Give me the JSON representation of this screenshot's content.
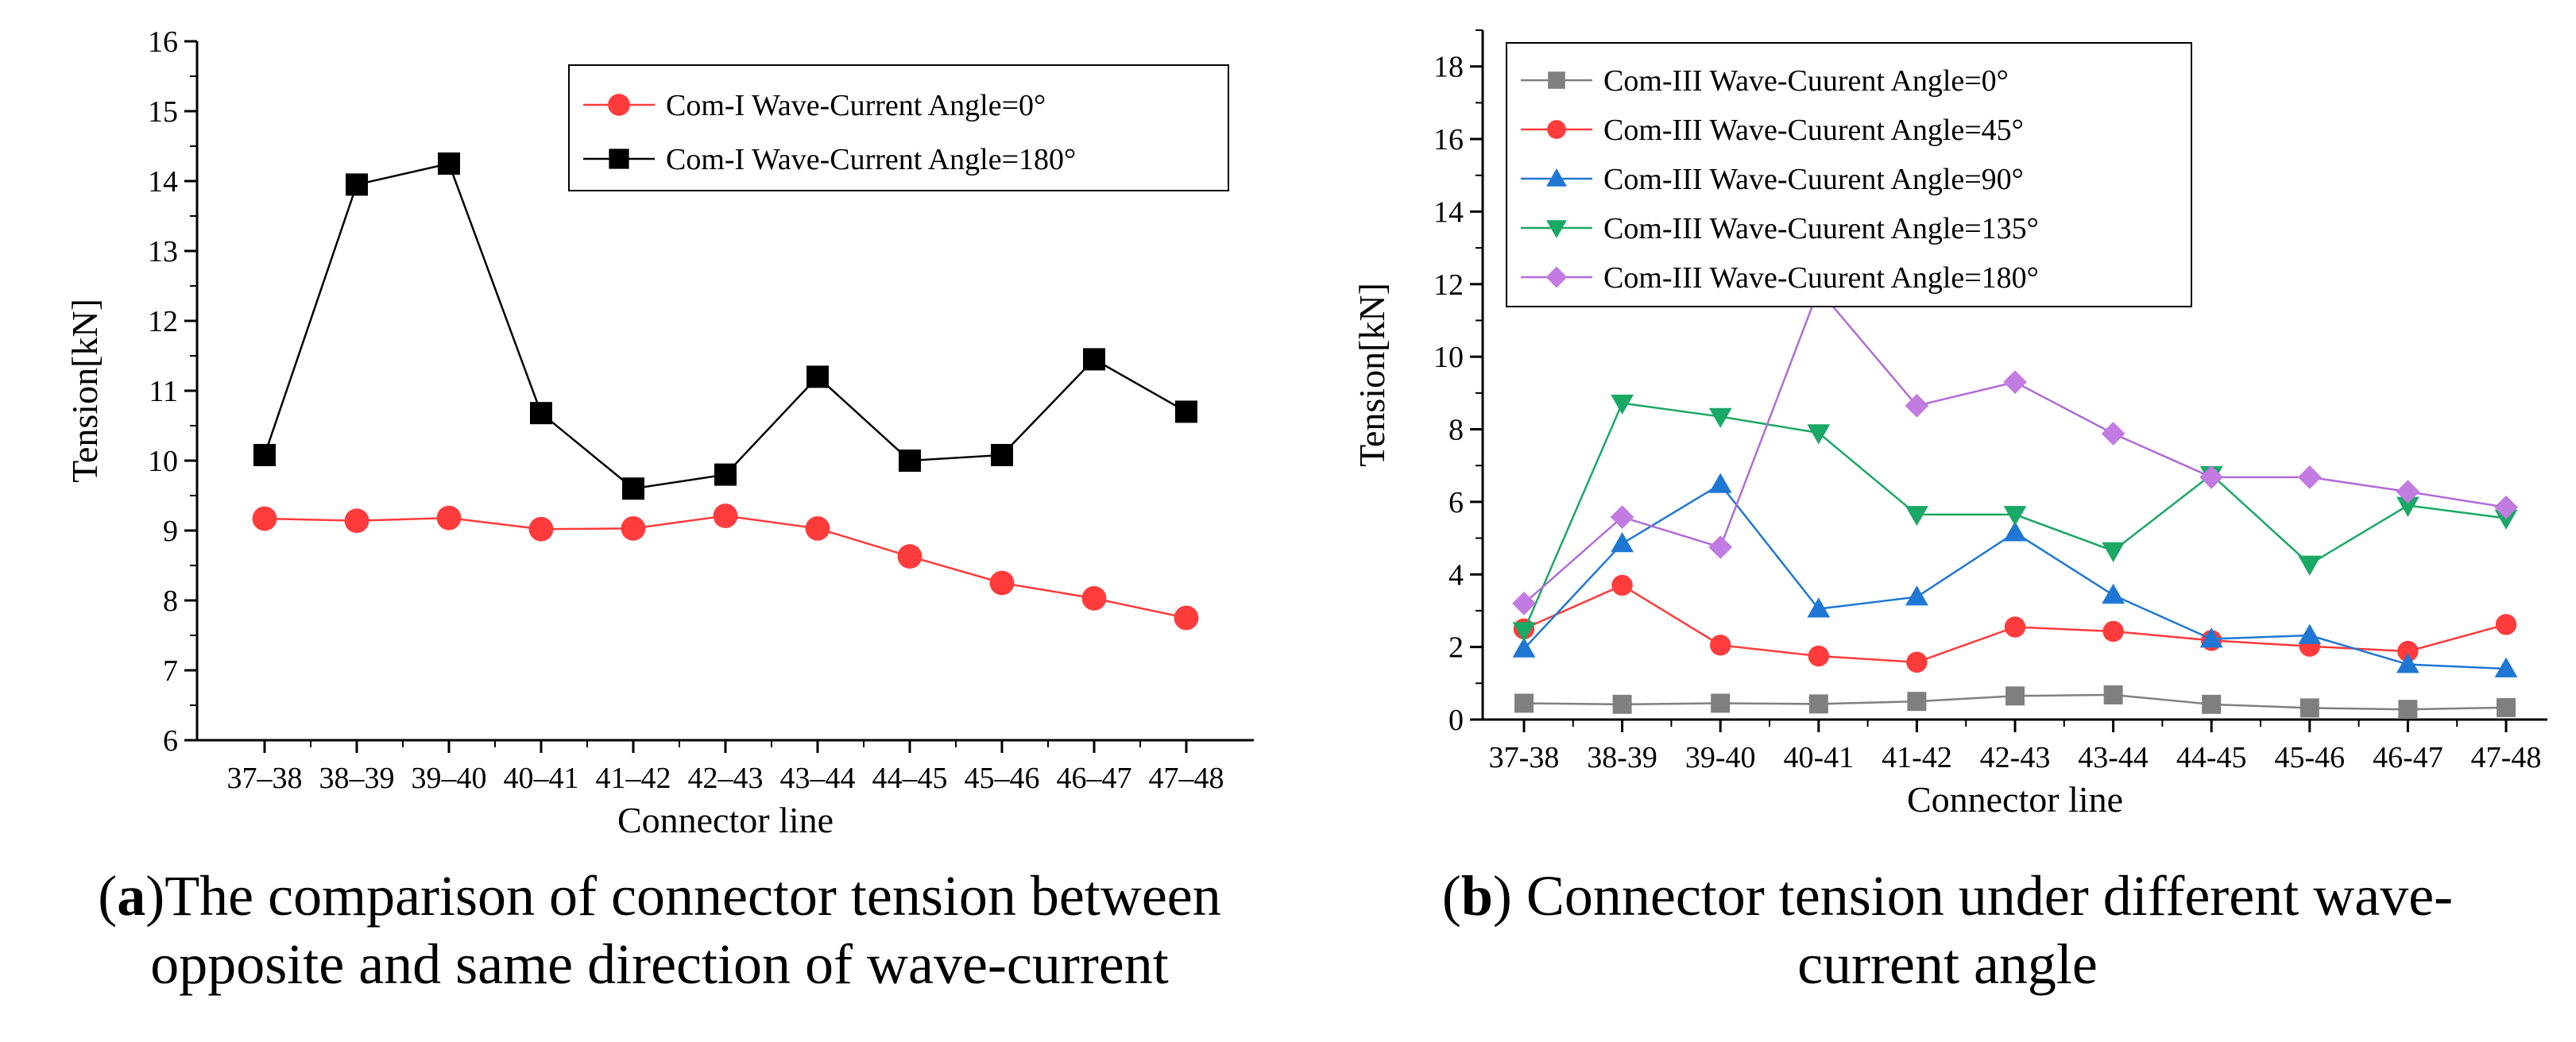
{
  "charts": [
    {
      "type": "line",
      "xlabel": "Connector line",
      "ylabel": "Tension[kN]",
      "ylim": [
        6,
        16
      ],
      "ytick_step": 1,
      "minor_ticks": true,
      "grid": false,
      "legend_position": "top-right",
      "categories": [
        "37–38",
        "38–39",
        "39–40",
        "40–41",
        "41–42",
        "42–43",
        "43–44",
        "44–45",
        "45–46",
        "46–47",
        "47–48"
      ],
      "series": [
        {
          "name": "Com-I Wave-Current Angle=0°",
          "color": "#ff3b3b",
          "line_color": "#ff3b3b",
          "marker": "circle",
          "values": [
            9.17,
            9.14,
            9.18,
            9.02,
            9.03,
            9.21,
            9.03,
            8.63,
            8.25,
            8.03,
            7.75
          ]
        },
        {
          "name": "Com-I Wave-Current Angle=180°",
          "color": "#000000",
          "line_color": "#000000",
          "marker": "square",
          "values": [
            10.08,
            13.95,
            14.25,
            10.68,
            9.6,
            9.8,
            11.2,
            10.0,
            10.08,
            11.45,
            10.7
          ]
        }
      ]
    },
    {
      "type": "line",
      "xlabel": "Connector line",
      "ylabel": "Tension[kN]",
      "ylim": [
        0,
        19
      ],
      "ytick_step": 2,
      "ytick_max": 18,
      "minor_ticks": true,
      "grid": false,
      "legend_position": "top-left",
      "categories": [
        "37-38",
        "38-39",
        "39-40",
        "40-41",
        "41-42",
        "42-43",
        "43-44",
        "44-45",
        "45-46",
        "46-47",
        "47-48"
      ],
      "series": [
        {
          "name": "Com-III Wave-Cuurent Angle=0°",
          "color": "#7f7f7f",
          "line_color": "#7f7f7f",
          "marker": "square",
          "values": [
            0.45,
            0.42,
            0.45,
            0.43,
            0.5,
            0.65,
            0.68,
            0.42,
            0.32,
            0.28,
            0.33
          ]
        },
        {
          "name": "Com-III Wave-Cuurent Angle=45°",
          "color": "#ff3b3b",
          "line_color": "#ff3b3b",
          "marker": "circle",
          "values": [
            2.5,
            3.7,
            2.05,
            1.75,
            1.58,
            2.55,
            2.43,
            2.18,
            2.02,
            1.88,
            2.62
          ]
        },
        {
          "name": "Com-III Wave-Cuurent Angle=90°",
          "color": "#1f77d4",
          "line_color": "#1f77d4",
          "marker": "triangle-up",
          "values": [
            1.95,
            4.85,
            6.48,
            3.05,
            3.38,
            5.15,
            3.43,
            2.22,
            2.32,
            1.52,
            1.4
          ]
        },
        {
          "name": "Com-III Wave-Cuurent Angle=135°",
          "color": "#1aa866",
          "line_color": "#1aa866",
          "marker": "triangle-down",
          "values": [
            2.45,
            8.72,
            8.35,
            7.9,
            5.65,
            5.65,
            4.65,
            6.75,
            4.28,
            5.9,
            5.55
          ]
        },
        {
          "name": "Com-III Wave-Cuurent Angle=180°",
          "color": "#c27be0",
          "line_color": "#b06cd8",
          "marker": "diamond",
          "values": [
            3.2,
            5.58,
            4.75,
            11.85,
            8.65,
            9.3,
            7.88,
            6.68,
            6.68,
            6.28,
            5.85
          ]
        }
      ]
    }
  ],
  "captions": [
    {
      "label": "a",
      "line1": "The comparison of connector tension between",
      "line2": "opposite and same direction of wave-current"
    },
    {
      "label": "b",
      "line1": "Connector tension under different wave-",
      "line2": "current angle"
    }
  ]
}
